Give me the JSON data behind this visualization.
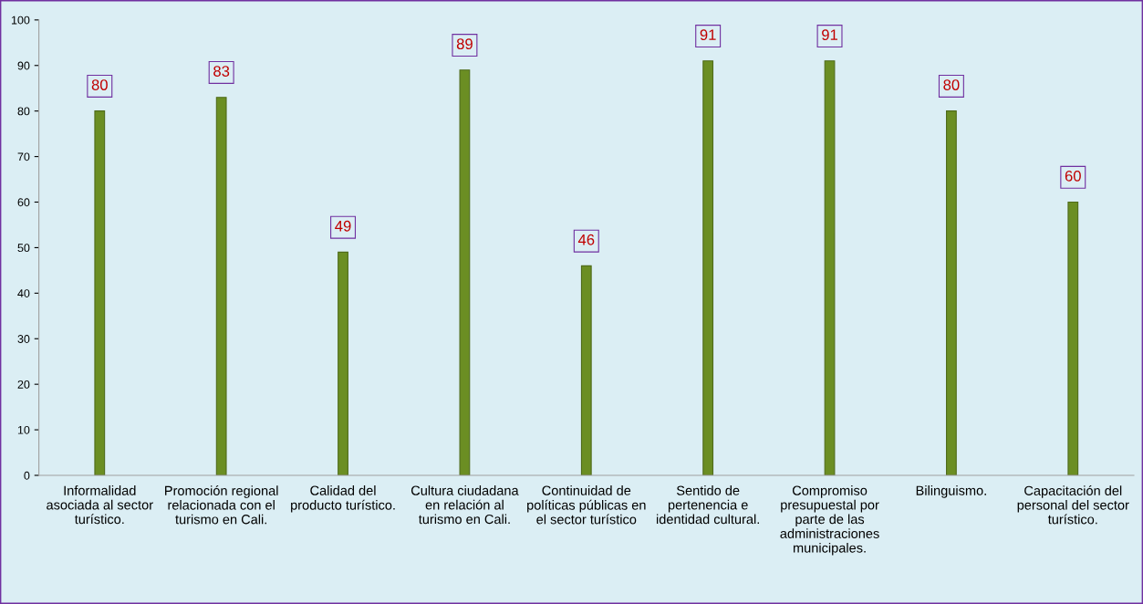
{
  "chart_data": {
    "type": "bar",
    "categories": [
      "Informalidad\nasociada al sector\nturístico.",
      "Promoción regional\nrelacionada con el\nturismo en Cali.",
      "Calidad del\nproducto turístico.",
      "Cultura ciudadana\nen relación al\nturismo en Cali.",
      "Continuidad de\npolíticas públicas en\nel sector turístico",
      "Sentido de\npertenencia e\nidentidad cultural.",
      "Compromiso\npresupuestal por\nparte de las\nadministraciones\nmunicipales.",
      "Bilinguismo.",
      "Capacitación del\npersonal del sector\nturístico."
    ],
    "values": [
      80,
      83,
      49,
      89,
      46,
      91,
      91,
      80,
      60
    ],
    "color": "#6b8e23",
    "ylim": [
      0,
      100
    ],
    "yticks": [
      0,
      10,
      20,
      30,
      40,
      50,
      60,
      70,
      80,
      90,
      100
    ],
    "data_labels": true,
    "grid": false,
    "legend": false
  }
}
